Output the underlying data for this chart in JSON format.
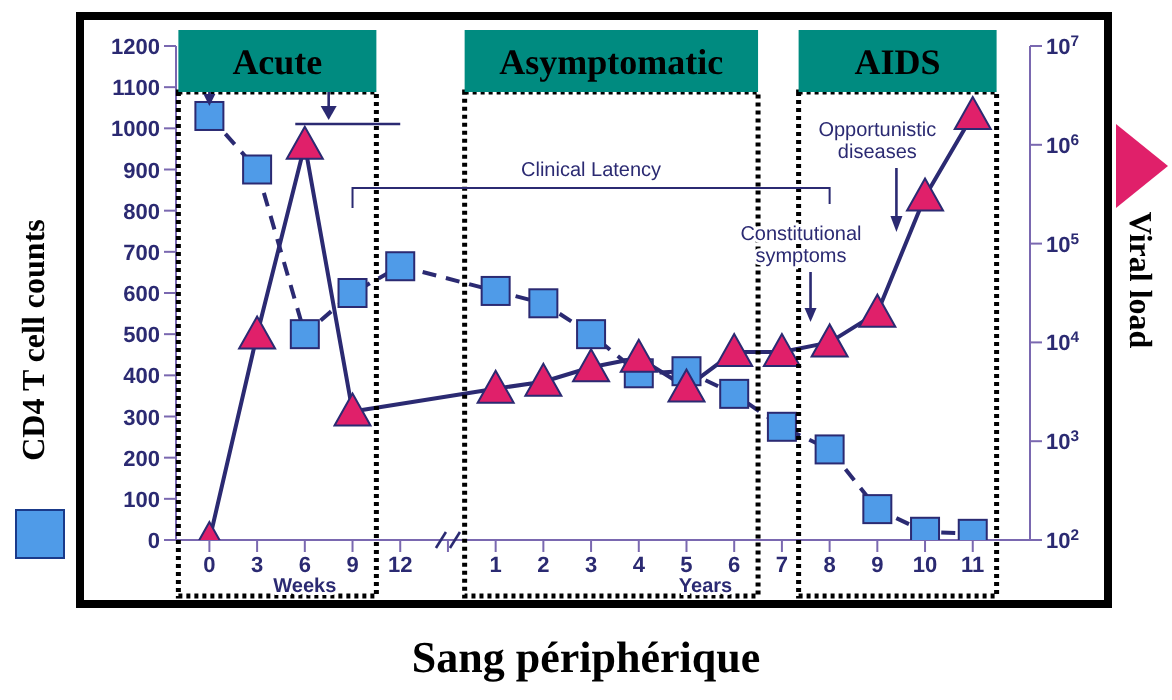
{
  "chart_data": {
    "type": "line",
    "title": "Sang périphérique",
    "ylabel": "CD4 T cell counts",
    "y2label": "Viral load",
    "categories": [
      "0",
      "3",
      "6",
      "9",
      "12",
      null,
      "1",
      "2",
      "3",
      "4",
      "5",
      "6",
      "7",
      "8",
      "9",
      "10",
      "11"
    ],
    "series": [
      {
        "color": "#4f9be8",
        "marker": "square",
        "line_style": "dashed",
        "values": [
          1030,
          900,
          500,
          600,
          665,
          null,
          605,
          575,
          500,
          405,
          410,
          355,
          275,
          220,
          75,
          20,
          15
        ]
      },
      {
        "axis": "y2",
        "color": "#e0206a",
        "marker": "triangle",
        "line_style": "solid",
        "values": [
          100,
          12000,
          1000000,
          2000,
          null,
          null,
          3400,
          4000,
          5600,
          7000,
          3500,
          8000,
          8000,
          10000,
          20000,
          300000,
          2000000
        ]
      }
    ],
    "ylim": [
      0,
      1200
    ],
    "yticks": [
      0,
      100,
      200,
      300,
      400,
      500,
      600,
      700,
      800,
      900,
      1000,
      1100,
      1200
    ],
    "y2lim": [
      100,
      10000000
    ],
    "y2ticks": [
      {
        "value": 100,
        "label": "10$^{2}$"
      },
      {
        "value": 1000,
        "label": "10$^{3}$"
      },
      {
        "value": 10000,
        "label": "10$^{4}$"
      },
      {
        "value": 100000,
        "label": "10$^{5}$"
      },
      {
        "value": 1000000,
        "label": "10$^{6}$"
      },
      {
        "value": 10000000,
        "label": "10$^{7}$"
      }
    ],
    "log": "y2",
    "annotations": [
      "Clinical Latency",
      "Constitutional symptoms",
      "Opportunistic diseases",
      "Weeks",
      "Years",
      "Acute",
      "Asymptomatic",
      "AIDS"
    ]
  }
}
